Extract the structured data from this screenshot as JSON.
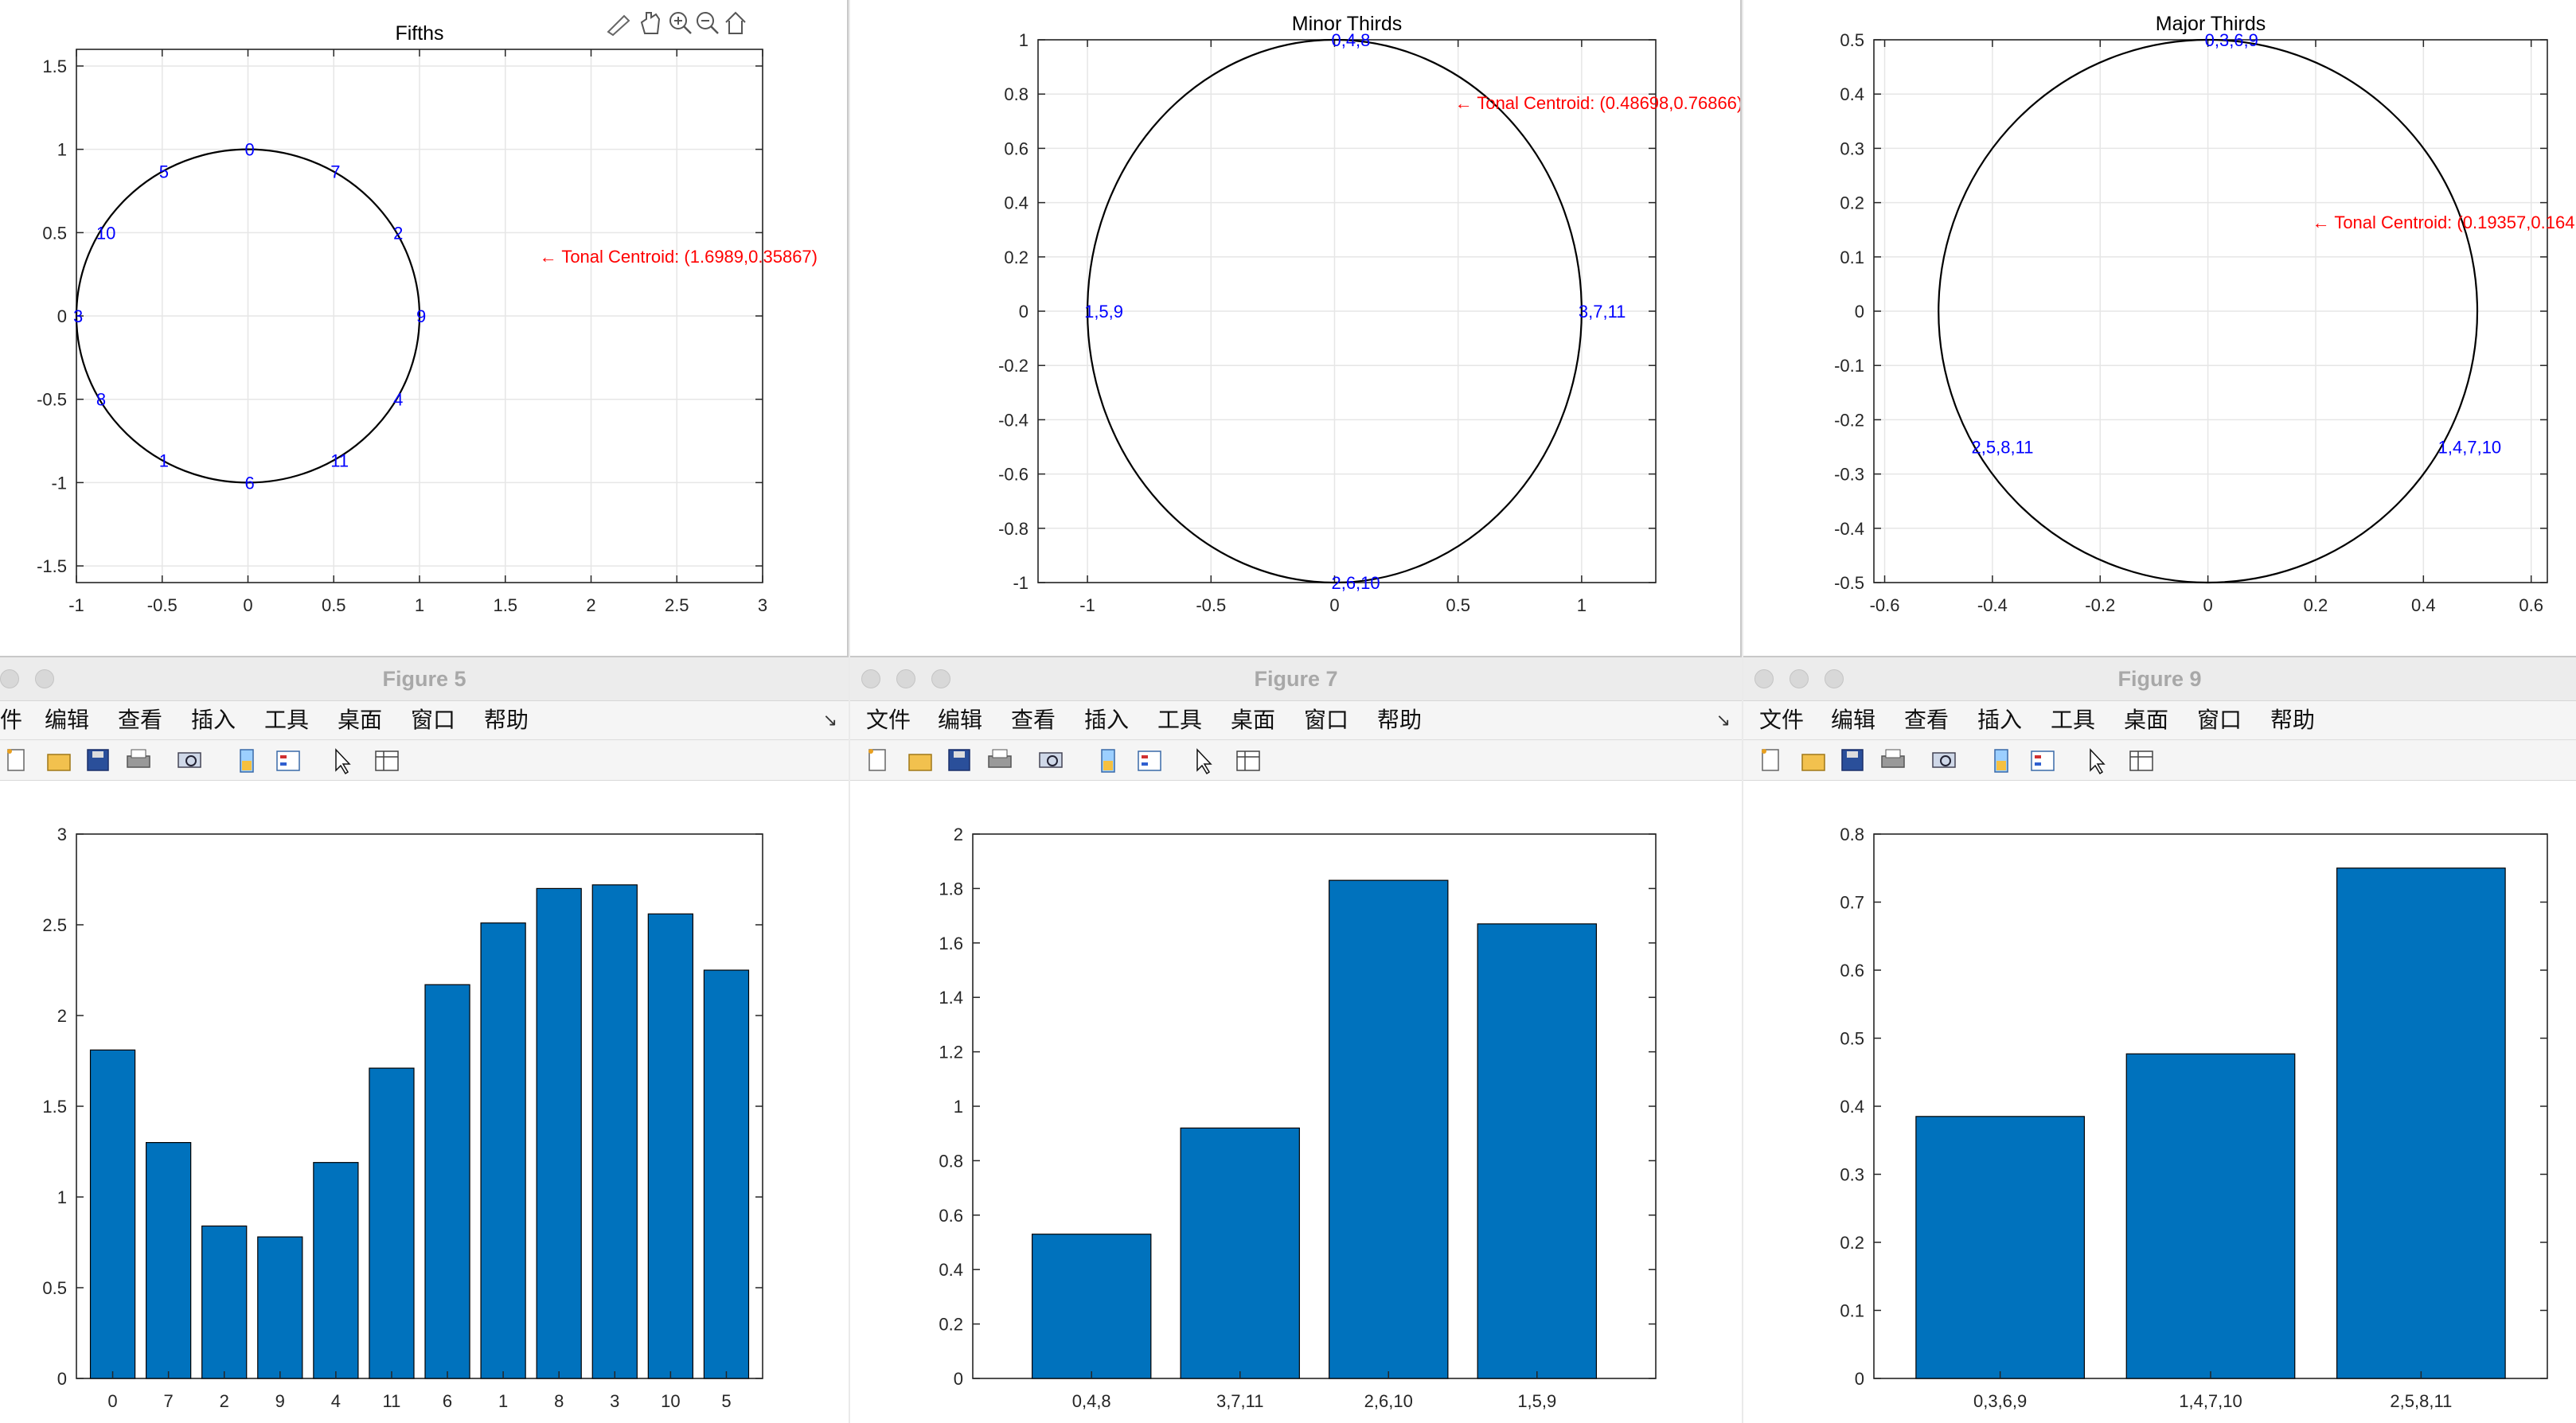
{
  "windows": {
    "fig5": {
      "title": "Figure 5"
    },
    "fig7": {
      "title": "Figure 7"
    },
    "fig9": {
      "title": "Figure 9"
    }
  },
  "menus": {
    "fig5": [
      "件",
      "编辑",
      "查看",
      "插入",
      "工具",
      "桌面",
      "窗口",
      "帮助"
    ],
    "fig7": [
      "文件",
      "编辑",
      "查看",
      "插入",
      "工具",
      "桌面",
      "窗口",
      "帮助"
    ],
    "fig9": [
      "文件",
      "编辑",
      "查看",
      "插入",
      "工具",
      "桌面",
      "窗口",
      "帮助"
    ]
  },
  "toolbar_icons": [
    "new-file-icon",
    "open-folder-icon",
    "save-icon",
    "print-icon",
    "print-preview-icon",
    "link-plot-icon",
    "insert-legend-icon",
    "pointer-icon",
    "property-inspector-icon"
  ],
  "axes_toolbar_icons": [
    "brush-icon",
    "pan-hand-icon",
    "zoom-in-icon",
    "zoom-out-icon",
    "home-icon"
  ],
  "colors": {
    "bar": "#0072BD",
    "label": "#0000FF",
    "centroid": "#FF0000",
    "axis": "#262626",
    "grid": "#e6e6e6"
  },
  "chart_data": [
    {
      "id": "fifths",
      "type": "scatter",
      "title": "Fifths",
      "xlim": [
        -1,
        3
      ],
      "ylim": [
        -1.6,
        1.6
      ],
      "xticks": [
        -1,
        -0.5,
        0,
        0.5,
        1,
        1.5,
        2,
        2.5,
        3
      ],
      "xtick_labels": [
        "-1",
        "-0.5",
        "0",
        "0.5",
        "1",
        "1.5",
        "2",
        "2.5",
        "3"
      ],
      "yticks": [
        -1.5,
        -1,
        -0.5,
        0,
        0.5,
        1,
        1.5
      ],
      "ytick_labels": [
        "-1.5",
        "-1",
        "-0.5",
        "0",
        "0.5",
        "1",
        "1.5"
      ],
      "grid": true,
      "circle": {
        "cx": 0,
        "cy": 0,
        "r": 1
      },
      "labels": [
        {
          "text": "0",
          "x": 0,
          "y": 1
        },
        {
          "text": "7",
          "x": 0.5,
          "y": 0.866
        },
        {
          "text": "2",
          "x": 0.866,
          "y": 0.5
        },
        {
          "text": "9",
          "x": 1,
          "y": 0
        },
        {
          "text": "4",
          "x": 0.866,
          "y": -0.5
        },
        {
          "text": "11",
          "x": 0.5,
          "y": -0.866
        },
        {
          "text": "6",
          "x": 0,
          "y": -1
        },
        {
          "text": "1",
          "x": -0.5,
          "y": -0.866
        },
        {
          "text": "8",
          "x": -0.866,
          "y": -0.5
        },
        {
          "text": "3",
          "x": -1,
          "y": 0
        },
        {
          "text": "10",
          "x": -0.866,
          "y": 0.5
        },
        {
          "text": "5",
          "x": -0.5,
          "y": 0.866
        }
      ],
      "annotation": {
        "text": "← Tonal Centroid: (1.6989,0.35867)",
        "x": 1.6989,
        "y": 0.35867
      }
    },
    {
      "id": "minor_thirds",
      "type": "scatter",
      "title": "Minor Thirds",
      "xlim": [
        -1.2,
        1.3
      ],
      "ylim": [
        -1,
        1
      ],
      "xticks": [
        -1,
        -0.5,
        0,
        0.5,
        1
      ],
      "xtick_labels": [
        "-1",
        "-0.5",
        "0",
        "0.5",
        "1"
      ],
      "yticks": [
        -1,
        -0.8,
        -0.6,
        -0.4,
        -0.2,
        0,
        0.2,
        0.4,
        0.6,
        0.8,
        1
      ],
      "ytick_labels": [
        "-1",
        "-0.8",
        "-0.6",
        "-0.4",
        "-0.2",
        "0",
        "0.2",
        "0.4",
        "0.6",
        "0.8",
        "1"
      ],
      "grid": true,
      "circle": {
        "cx": 0,
        "cy": 0,
        "r": 1
      },
      "labels": [
        {
          "text": "0,4,8",
          "x": 0,
          "y": 1
        },
        {
          "text": "3,7,11",
          "x": 1,
          "y": 0
        },
        {
          "text": "2,6,10",
          "x": 0,
          "y": -1
        },
        {
          "text": "1,5,9",
          "x": -1,
          "y": 0
        }
      ],
      "annotation": {
        "text": "← Tonal Centroid: (0.48698,0.76866)",
        "x": 0.48698,
        "y": 0.76866
      }
    },
    {
      "id": "major_thirds",
      "type": "scatter",
      "title": "Major Thirds",
      "xlim": [
        -0.62,
        0.63
      ],
      "ylim": [
        -0.5,
        0.5
      ],
      "xticks": [
        -0.6,
        -0.4,
        -0.2,
        0,
        0.2,
        0.4,
        0.6
      ],
      "xtick_labels": [
        "-0.6",
        "-0.4",
        "-0.2",
        "0",
        "0.2",
        "0.4",
        "0.6"
      ],
      "yticks": [
        -0.5,
        -0.4,
        -0.3,
        -0.2,
        -0.1,
        0,
        0.1,
        0.2,
        0.3,
        0.4,
        0.5
      ],
      "ytick_labels": [
        "-0.5",
        "-0.4",
        "-0.3",
        "-0.2",
        "-0.1",
        "0",
        "0.1",
        "0.2",
        "0.3",
        "0.4",
        "0.5"
      ],
      "grid": true,
      "circle": {
        "cx": 0,
        "cy": 0,
        "r": 0.5
      },
      "labels": [
        {
          "text": "0,3,6,9",
          "x": 0,
          "y": 0.5
        },
        {
          "text": "1,4,7,10",
          "x": 0.433,
          "y": -0.25
        },
        {
          "text": "2,5,8,11",
          "x": -0.433,
          "y": -0.25
        }
      ],
      "annotation": {
        "text": "← Tonal Centroid: (0.19357,0.164",
        "x": 0.19357,
        "y": 0.164
      }
    },
    {
      "id": "fig5_bar",
      "type": "bar",
      "categories": [
        "0",
        "7",
        "2",
        "9",
        "4",
        "11",
        "6",
        "1",
        "8",
        "3",
        "10",
        "5"
      ],
      "values": [
        1.81,
        1.3,
        0.84,
        0.78,
        1.19,
        1.71,
        2.17,
        2.51,
        2.7,
        2.72,
        2.56,
        2.25
      ],
      "ylim": [
        0,
        3
      ],
      "xlim": [
        0.35,
        12.65
      ],
      "yticks": [
        0,
        0.5,
        1,
        1.5,
        2,
        2.5,
        3
      ],
      "ytick_labels": [
        "0",
        "0.5",
        "1",
        "1.5",
        "2",
        "2.5",
        "3"
      ],
      "grid": false
    },
    {
      "id": "fig7_bar",
      "type": "bar",
      "categories": [
        "0,4,8",
        "3,7,11",
        "2,6,10",
        "1,5,9"
      ],
      "values": [
        0.53,
        0.92,
        1.83,
        1.67
      ],
      "ylim": [
        0,
        2
      ],
      "xlim": [
        0.2,
        4.8
      ],
      "yticks": [
        0,
        0.2,
        0.4,
        0.6,
        0.8,
        1,
        1.2,
        1.4,
        1.6,
        1.8,
        2
      ],
      "ytick_labels": [
        "0",
        "0.2",
        "0.4",
        "0.6",
        "0.8",
        "1",
        "1.2",
        "1.4",
        "1.6",
        "1.8",
        "2"
      ],
      "grid": false
    },
    {
      "id": "fig9_bar",
      "type": "bar",
      "categories": [
        "0,3,6,9",
        "1,4,7,10",
        "2,5,8,11"
      ],
      "values": [
        0.385,
        0.477,
        0.75
      ],
      "ylim": [
        0,
        0.8
      ],
      "xlim": [
        0.4,
        3.6
      ],
      "yticks": [
        0,
        0.1,
        0.2,
        0.3,
        0.4,
        0.5,
        0.6,
        0.7,
        0.8
      ],
      "ytick_labels": [
        "0",
        "0.1",
        "0.2",
        "0.3",
        "0.4",
        "0.5",
        "0.6",
        "0.7",
        "0.8"
      ],
      "grid": false
    }
  ]
}
